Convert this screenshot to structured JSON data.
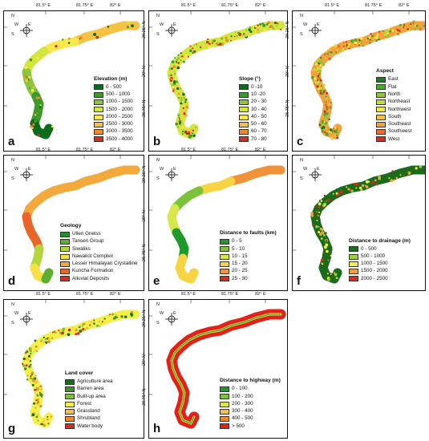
{
  "axis_ticks": {
    "lon": [
      "81.5° E",
      "81.75° E",
      "82° E"
    ],
    "lat": [
      "29.25° N",
      "29° N",
      "28.75° N"
    ]
  },
  "compass": {
    "n": "N",
    "s": "S",
    "e": "E",
    "w": "W"
  },
  "panels": [
    {
      "letter": "a",
      "legend_title": "Elevation (m)",
      "classes": [
        {
          "label": "0 - 500",
          "color": "#0a6b1a"
        },
        {
          "label": "500 - 1000",
          "color": "#3e9a2c"
        },
        {
          "label": "1000 - 1500",
          "color": "#8cc63f"
        },
        {
          "label": "1500 - 2000",
          "color": "#d3e63e"
        },
        {
          "label": "2000 - 2500",
          "color": "#fbe84a"
        },
        {
          "label": "2500 - 3000",
          "color": "#f7c243"
        },
        {
          "label": "3000 - 3500",
          "color": "#ef8a2f"
        },
        {
          "label": "3500 - 4000",
          "color": "#d92b1f"
        }
      ]
    },
    {
      "letter": "b",
      "legend_title": "Slope (°)",
      "classes": [
        {
          "label": "0 -10",
          "color": "#0a6b1a"
        },
        {
          "label": "10 -20",
          "color": "#3e9a2c"
        },
        {
          "label": "20 - 30",
          "color": "#8cc63f"
        },
        {
          "label": "30 - 40",
          "color": "#d3e63e"
        },
        {
          "label": "40 - 50",
          "color": "#fbe84a"
        },
        {
          "label": "50 - 60",
          "color": "#f7c243"
        },
        {
          "label": "60 - 70",
          "color": "#ef8a2f"
        },
        {
          "label": "70 - 80",
          "color": "#d92b1f"
        }
      ]
    },
    {
      "letter": "c",
      "legend_title": "Aspect",
      "classes": [
        {
          "label": "East",
          "color": "#1e7a1e"
        },
        {
          "label": "Flat",
          "color": "#4ea532"
        },
        {
          "label": "North",
          "color": "#8cc63f"
        },
        {
          "label": "Northeast",
          "color": "#c2dc3a"
        },
        {
          "label": "Northwest",
          "color": "#ecea4a"
        },
        {
          "label": "South",
          "color": "#f7c243"
        },
        {
          "label": "Southeast",
          "color": "#f3a23a"
        },
        {
          "label": "Southwest",
          "color": "#ec6d2c"
        },
        {
          "label": "West",
          "color": "#d92b1f"
        }
      ]
    },
    {
      "letter": "d",
      "legend_title": "Geology",
      "classes": [
        {
          "label": "Ulleri Gneiss",
          "color": "#1f8f2a"
        },
        {
          "label": "Tansen Group",
          "color": "#5cb030"
        },
        {
          "label": "Siwaliks",
          "color": "#b5d63c"
        },
        {
          "label": "Nawakot Complex",
          "color": "#f7e04a"
        },
        {
          "label": "Lesser Himalayan Crystalline",
          "color": "#f4a93c"
        },
        {
          "label": "Kuncha Formation",
          "color": "#e8662a"
        },
        {
          "label": "Alluvial Deposits",
          "color": "#d92b1f"
        }
      ]
    },
    {
      "letter": "e",
      "legend_title": "Distance to faults (km)",
      "classes": [
        {
          "label": "0 - 5",
          "color": "#1f9a2a"
        },
        {
          "label": "5 - 10",
          "color": "#7cc23c"
        },
        {
          "label": "10 - 15",
          "color": "#d8e84a"
        },
        {
          "label": "15 - 20",
          "color": "#f7d444"
        },
        {
          "label": "20 - 25",
          "color": "#f0923a"
        },
        {
          "label": "25 - 30",
          "color": "#d92b1f"
        }
      ]
    },
    {
      "letter": "f",
      "legend_title": "Distance to drainage (m)",
      "classes": [
        {
          "label": "0 - 500",
          "color": "#1b6b1b"
        },
        {
          "label": "500 - 1000",
          "color": "#9cd03c"
        },
        {
          "label": "1000 - 1500",
          "color": "#f4f04a"
        },
        {
          "label": "1500 - 2000",
          "color": "#f0a13a"
        },
        {
          "label": "2000 - 2500",
          "color": "#d92b1f"
        }
      ]
    },
    {
      "letter": "g",
      "legend_title": "Land cover",
      "classes": [
        {
          "label": "Agriculture area",
          "color": "#1b6b1b"
        },
        {
          "label": "Barren area",
          "color": "#3f8f2a"
        },
        {
          "label": "Built-up area",
          "color": "#7cc23c"
        },
        {
          "label": "Forest",
          "color": "#f4f04a"
        },
        {
          "label": "Grassland",
          "color": "#f7c243"
        },
        {
          "label": "Shrubland",
          "color": "#ef8a2f"
        },
        {
          "label": "Water body",
          "color": "#d92b1f"
        }
      ]
    },
    {
      "letter": "h",
      "legend_title": "Distance to highway (m)",
      "classes": [
        {
          "label": "0 - 100",
          "color": "#1f9a2a"
        },
        {
          "label": "100 - 200",
          "color": "#7cc23c"
        },
        {
          "label": "200 - 300",
          "color": "#d8e84a"
        },
        {
          "label": "300 - 400",
          "color": "#f7c243"
        },
        {
          "label": "400 - 500",
          "color": "#ef8a2f"
        },
        {
          "label": ">  500",
          "color": "#e32119"
        }
      ]
    }
  ]
}
